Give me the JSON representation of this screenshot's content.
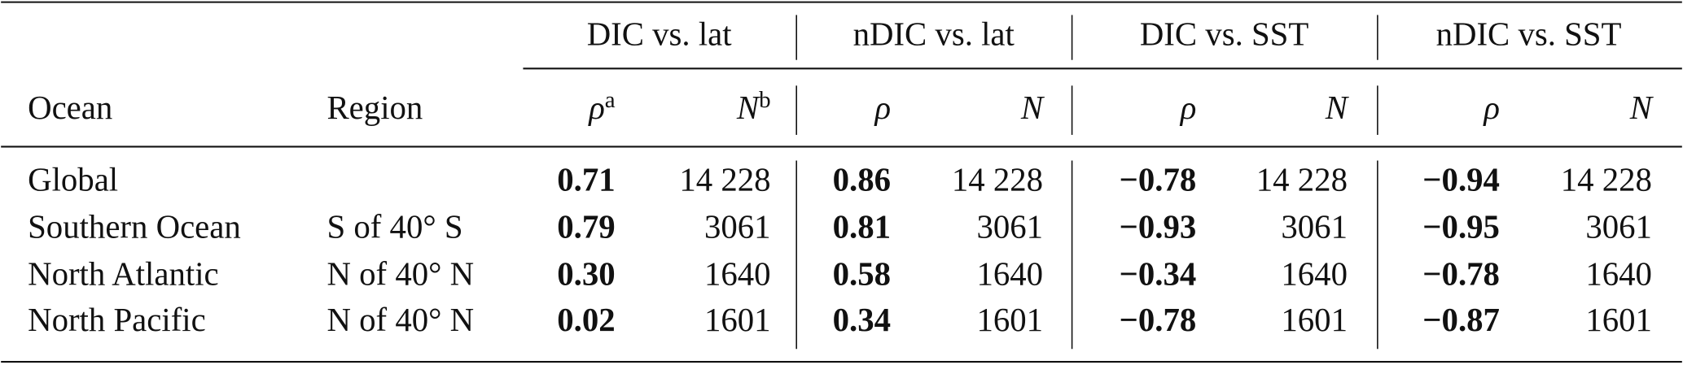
{
  "table": {
    "group_headers": [
      "DIC vs. lat",
      "nDIC vs. lat",
      "DIC vs. SST",
      "nDIC vs. SST"
    ],
    "columns": [
      {
        "text": "Ocean"
      },
      {
        "text": "Region"
      },
      {
        "text": "ρ",
        "sup": "a"
      },
      {
        "text": "N",
        "sup": "b"
      },
      {
        "text": "ρ"
      },
      {
        "text": "N"
      },
      {
        "text": "ρ"
      },
      {
        "text": "N"
      },
      {
        "text": "ρ"
      },
      {
        "text": "N"
      }
    ],
    "rows": [
      [
        "Global",
        null,
        "0.71",
        "14 228",
        "0.86",
        "14 228",
        "−0.78",
        "14 228",
        "−0.94",
        "14 228"
      ],
      [
        "Southern Ocean",
        "S of 40° S",
        "0.79",
        "3061",
        "0.81",
        "3061",
        "−0.93",
        "3061",
        "−0.95",
        "3061"
      ],
      [
        "North Atlantic",
        "N of 40° N",
        "0.30",
        "1640",
        "0.58",
        "1640",
        "−0.34",
        "1640",
        "−0.78",
        "1640"
      ],
      [
        "North Pacific",
        "N of 40° N",
        "0.02",
        "1601",
        "0.34",
        "1601",
        "−0.78",
        "1601",
        "−0.87",
        "1601"
      ]
    ]
  }
}
